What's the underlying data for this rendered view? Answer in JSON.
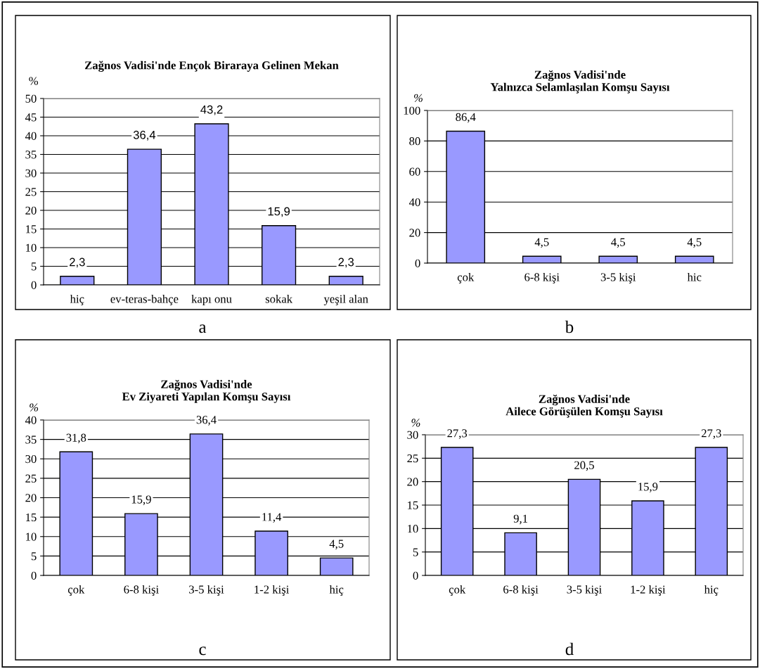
{
  "chart_data": [
    {
      "type": "bar",
      "title": "Zağnos Vadisi'nde Ençok Biraraya Gelinen Mekan",
      "ylabel": "%",
      "categories": [
        "hiç",
        "ev-teras-bahçe",
        "kapı onu",
        "sokak",
        "yeşil alan"
      ],
      "values": [
        2.3,
        36.4,
        43.2,
        15.9,
        2.3
      ],
      "value_labels": [
        "2,3",
        "36,4",
        "43,2",
        "15,9",
        "2,3"
      ],
      "color": "#9999ff",
      "ylim": [
        0,
        50
      ],
      "yticks": [
        0,
        5,
        10,
        15,
        20,
        25,
        30,
        35,
        40,
        45,
        50
      ],
      "grid": "y",
      "annotations": [
        "a"
      ]
    },
    {
      "type": "bar",
      "title": "Zağnos Vadisi'nde\nYalnızca Selamlaşılan Komşu Sayısı",
      "ylabel": "%",
      "categories": [
        "çok",
        "6-8 kişi",
        "3-5 kişi",
        "hic"
      ],
      "values": [
        86.4,
        4.5,
        4.5,
        4.5
      ],
      "value_labels": [
        "86,4",
        "4,5",
        "4,5",
        "4,5"
      ],
      "color": "#9999ff",
      "ylim": [
        0,
        100
      ],
      "yticks": [
        0,
        20,
        40,
        60,
        80,
        100
      ],
      "grid": "y",
      "annotations": [
        "b"
      ]
    },
    {
      "type": "bar",
      "title": "Zağnos Vadisi'nde\nEv Ziyareti Yapılan Komşu Sayısı",
      "ylabel": "%",
      "categories": [
        "çok",
        "6-8 kişi",
        "3-5 kişi",
        "1-2 kişi",
        "hiç"
      ],
      "values": [
        31.8,
        15.9,
        36.4,
        11.4,
        4.5
      ],
      "value_labels": [
        "31,8",
        "15,9",
        "36,4",
        "11,4",
        "4,5"
      ],
      "color": "#9999ff",
      "ylim": [
        0,
        40
      ],
      "yticks": [
        0,
        5,
        10,
        15,
        20,
        25,
        30,
        35,
        40
      ],
      "grid": "y",
      "annotations": [
        "c"
      ]
    },
    {
      "type": "bar",
      "title": "Zağnos Vadisi'nde\nAilece Görüşülen Komşu Sayısı",
      "ylabel": "%",
      "categories": [
        "çok",
        "6-8 kişi",
        "3-5 kişi",
        "1-2 kişi",
        "hiç"
      ],
      "values": [
        27.3,
        9.1,
        20.5,
        15.9,
        27.3
      ],
      "value_labels": [
        "27,3",
        "9,1",
        "20,5",
        "15,9",
        "27,3"
      ],
      "color": "#9999ff",
      "ylim": [
        0,
        30
      ],
      "yticks": [
        0,
        5,
        10,
        15,
        20,
        25,
        30
      ],
      "grid": "y",
      "annotations": [
        "d"
      ]
    }
  ]
}
